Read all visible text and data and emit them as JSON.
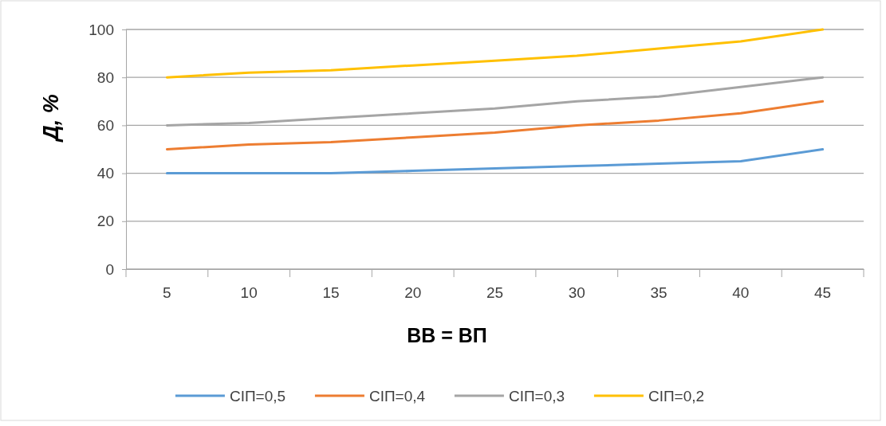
{
  "chart_data": {
    "type": "line",
    "xlabel": "ВВ = ВП",
    "ylabel": "Д, %",
    "categories": [
      "5",
      "10",
      "15",
      "20",
      "25",
      "30",
      "35",
      "40",
      "45"
    ],
    "series": [
      {
        "name": "СІП=0,5",
        "color": "#5b9bd5",
        "values": [
          40,
          40,
          40,
          41,
          42,
          43,
          44,
          45,
          50
        ]
      },
      {
        "name": "СІП=0,4",
        "color": "#ed7d31",
        "values": [
          50,
          52,
          53,
          55,
          57,
          60,
          62,
          65,
          70
        ]
      },
      {
        "name": "СІП=0,3",
        "color": "#a5a5a5",
        "values": [
          60,
          61,
          63,
          65,
          67,
          70,
          72,
          76,
          80
        ]
      },
      {
        "name": "СІП=0,2",
        "color": "#ffc000",
        "values": [
          80,
          82,
          83,
          85,
          87,
          89,
          92,
          95,
          100
        ]
      }
    ],
    "ylim": [
      0,
      100
    ],
    "yticks": [
      0,
      20,
      40,
      60,
      80,
      100
    ],
    "grid": "y",
    "legend": "bottom",
    "marker": "none",
    "line_style": "solid"
  }
}
